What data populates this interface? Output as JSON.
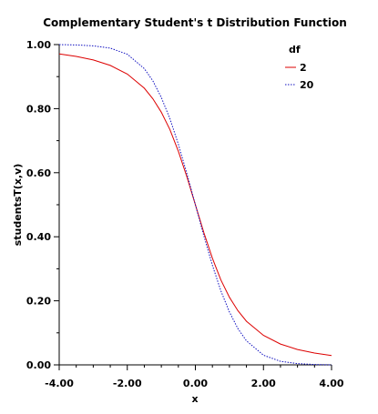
{
  "chart_data": {
    "type": "line",
    "title": "Complementary Student's t Distribution Function",
    "xlabel": "x",
    "ylabel": "studentsT(x,v)",
    "xlim": [
      -4.0,
      4.0
    ],
    "ylim": [
      0.0,
      1.0
    ],
    "x_ticks": [
      "-4.00",
      "-2.00",
      "0.00",
      "2.00",
      "4.00"
    ],
    "y_ticks": [
      "0.00",
      "0.20",
      "0.40",
      "0.60",
      "0.80",
      "1.00"
    ],
    "legend_title": "df",
    "legend_position": "top-right",
    "grid": false,
    "series": [
      {
        "name": "2",
        "color": "#dd0000",
        "style": "solid",
        "x": [
          -4.0,
          -3.5,
          -3.0,
          -2.5,
          -2.0,
          -1.5,
          -1.25,
          -1.0,
          -0.75,
          -0.5,
          -0.25,
          0.0,
          0.25,
          0.5,
          0.75,
          1.0,
          1.25,
          1.5,
          2.0,
          2.5,
          3.0,
          3.5,
          4.0
        ],
        "values": [
          0.971,
          0.963,
          0.952,
          0.935,
          0.908,
          0.864,
          0.831,
          0.789,
          0.735,
          0.667,
          0.587,
          0.5,
          0.413,
          0.333,
          0.265,
          0.211,
          0.169,
          0.136,
          0.092,
          0.065,
          0.048,
          0.037,
          0.029
        ]
      },
      {
        "name": "20",
        "color": "#1010c0",
        "style": "dotted",
        "x": [
          -4.0,
          -3.5,
          -3.0,
          -2.5,
          -2.0,
          -1.5,
          -1.25,
          -1.0,
          -0.75,
          -0.5,
          -0.25,
          0.0,
          0.25,
          0.5,
          0.75,
          1.0,
          1.25,
          1.5,
          2.0,
          2.5,
          3.0,
          3.5,
          4.0
        ],
        "values": [
          1.0,
          0.999,
          0.996,
          0.989,
          0.97,
          0.925,
          0.887,
          0.835,
          0.769,
          0.689,
          0.597,
          0.5,
          0.403,
          0.311,
          0.231,
          0.165,
          0.113,
          0.075,
          0.03,
          0.011,
          0.004,
          0.001,
          0.0
        ]
      }
    ]
  }
}
